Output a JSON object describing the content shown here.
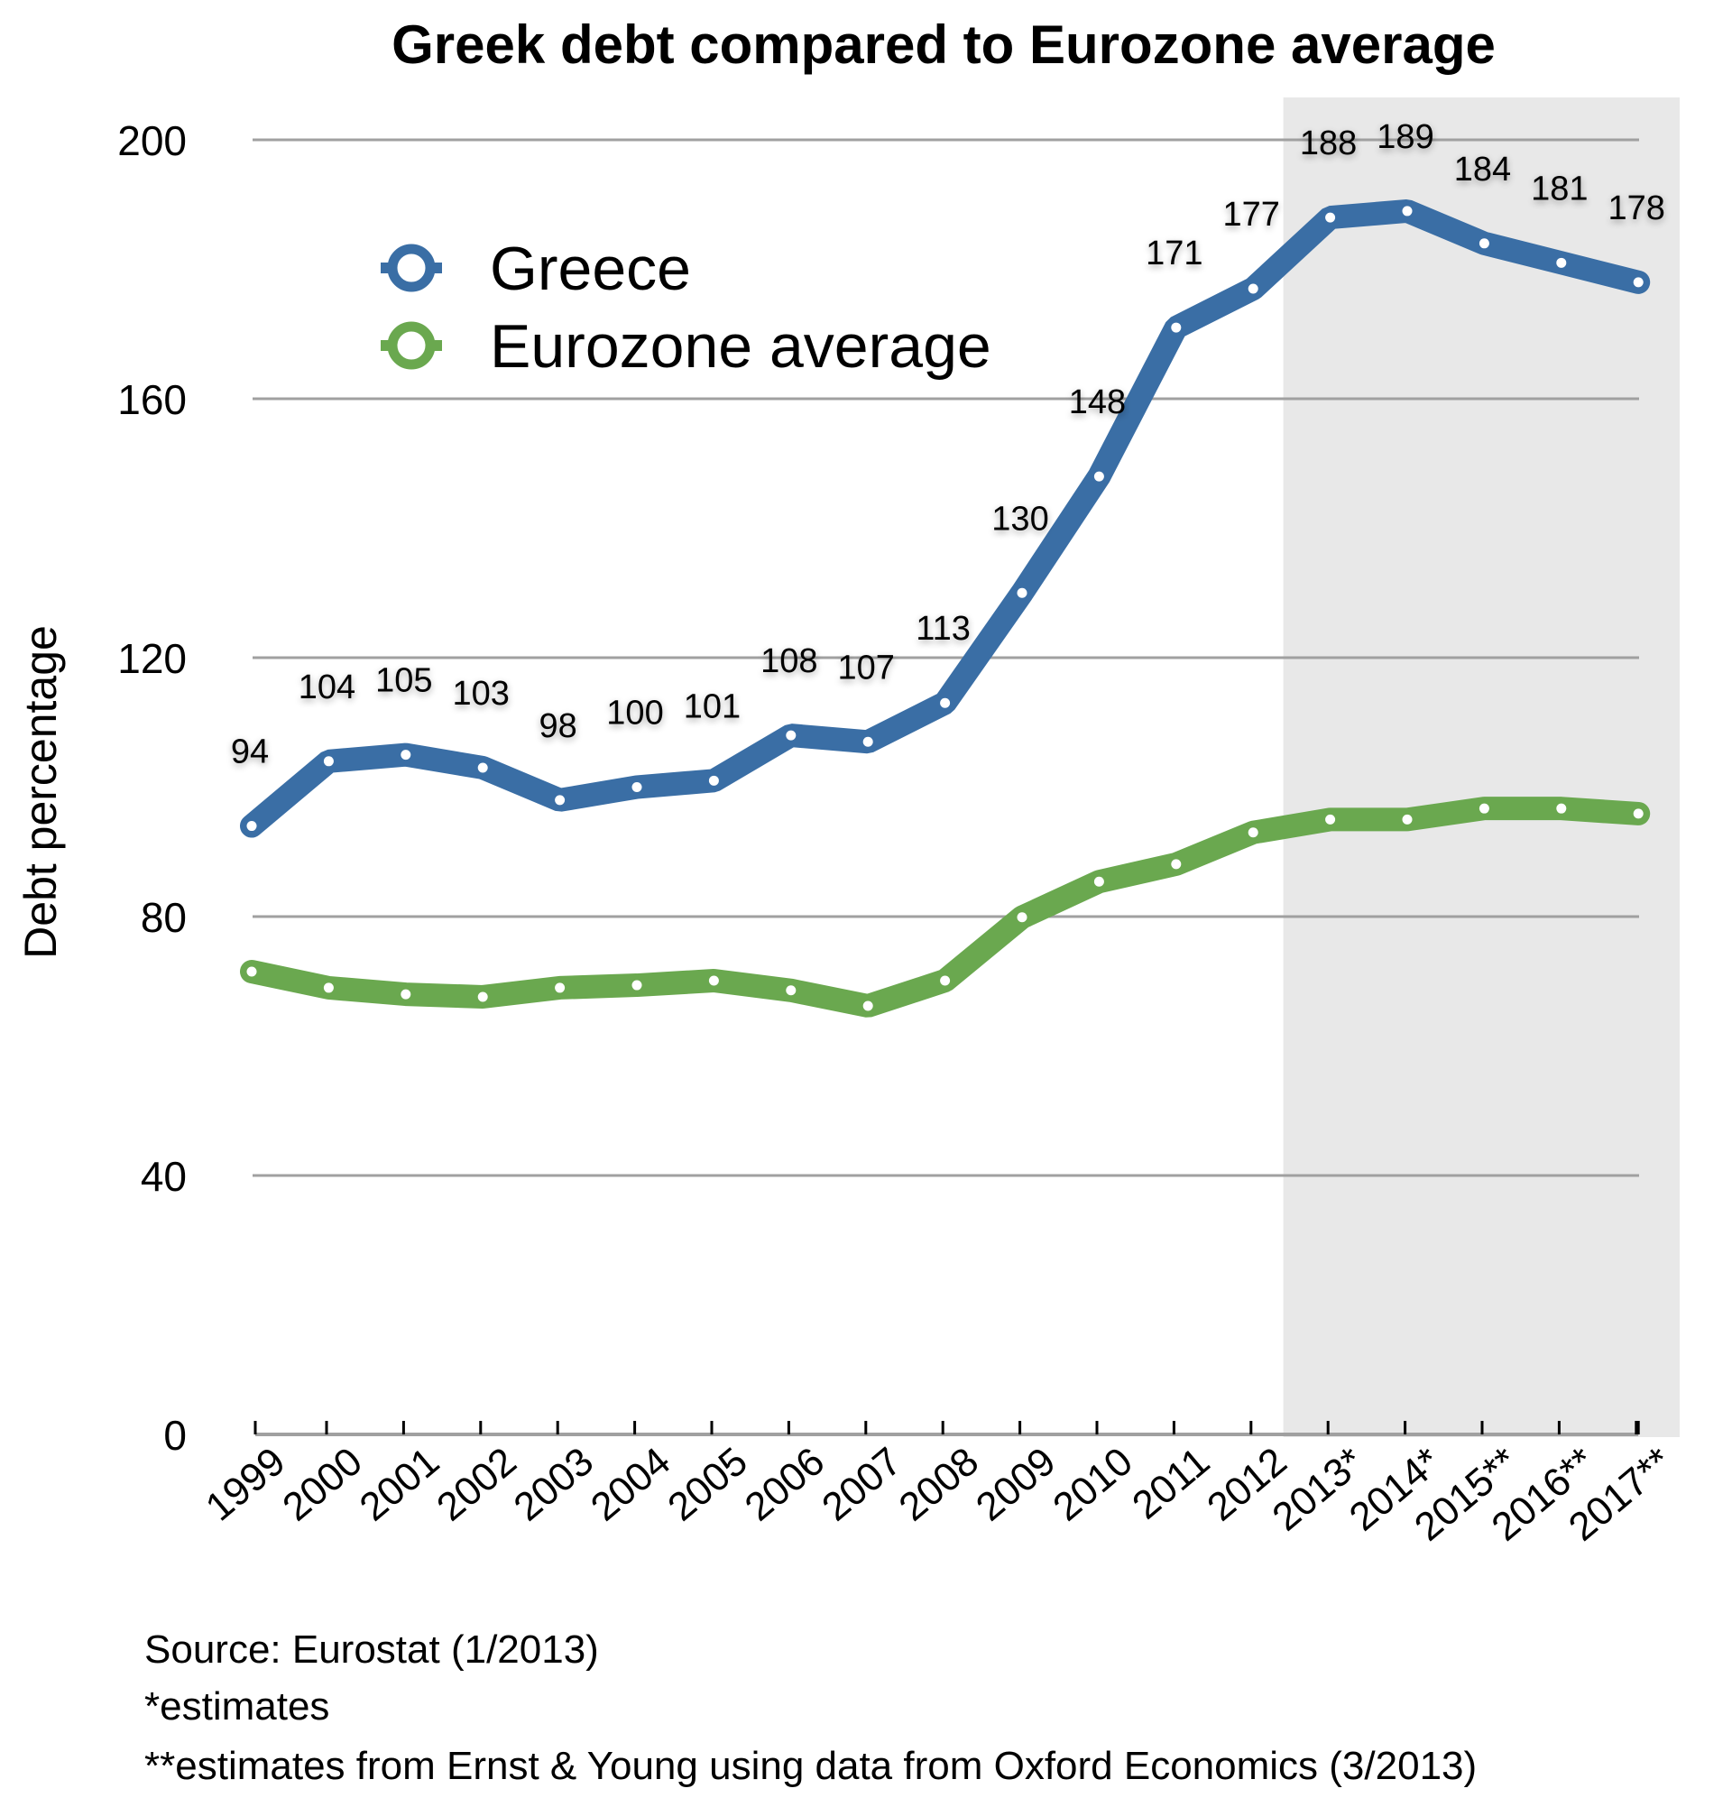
{
  "chart_data": {
    "type": "line",
    "title": "Greek debt compared to Eurozone average",
    "xlabel": "",
    "ylabel": "Debt percentage",
    "ylim": [
      0,
      200
    ],
    "yticks": [
      0,
      40,
      80,
      120,
      160,
      200
    ],
    "grid": true,
    "legend_position": "top-left",
    "categories": [
      "1999",
      "2000",
      "2001",
      "2002",
      "2003",
      "2004",
      "2005",
      "2006",
      "2007",
      "2008",
      "2009",
      "2010",
      "2011",
      "2012",
      "2013*",
      "2014*",
      "2015**",
      "2016**",
      "2017**"
    ],
    "shaded_region": {
      "from": "2013*",
      "to": "2017**",
      "color": "#e8e8e8"
    },
    "series": [
      {
        "name": "Greece",
        "color": "#3a6ea5",
        "show_labels": true,
        "values": [
          94,
          104,
          105,
          103,
          98,
          100,
          101,
          108,
          107,
          113,
          130,
          148,
          171,
          177,
          188,
          189,
          184,
          181,
          178
        ]
      },
      {
        "name": "Eurozone average",
        "color": "#6aa84f",
        "show_labels": false,
        "values": [
          71.5,
          69,
          68,
          67.6,
          69,
          69.4,
          70.1,
          68.6,
          66.2,
          70.1,
          79.9,
          85.4,
          88.1,
          93.0,
          95.0,
          95.0,
          96.7,
          96.7,
          95.9
        ]
      }
    ],
    "footnotes": [
      "Source: Eurostat (1/2013)",
      "*estimates",
      "**estimates from Ernst & Young using data from Oxford Economics (3/2013)"
    ]
  }
}
